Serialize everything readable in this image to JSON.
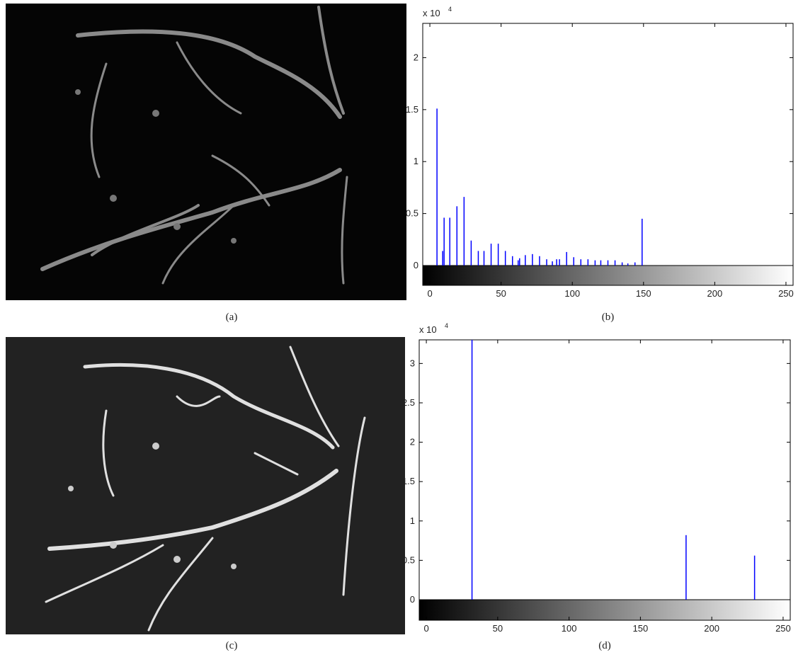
{
  "images": [
    {
      "caption": "(a)"
    },
    {
      "caption": "(c)"
    }
  ],
  "chart_data": [
    {
      "type": "bar",
      "caption": "(b)",
      "scale_label": {
        "base": "x 10",
        "exponent": "4"
      },
      "x": [
        5,
        9,
        10,
        14,
        19,
        24,
        29,
        34,
        38,
        43,
        48,
        53,
        58,
        62,
        63,
        67,
        72,
        77,
        82,
        86,
        89,
        91,
        96,
        101,
        106,
        111,
        116,
        120,
        125,
        130,
        135,
        139,
        144,
        149
      ],
      "values": [
        1.51,
        0.14,
        0.46,
        0.46,
        0.57,
        0.66,
        0.24,
        0.14,
        0.14,
        0.21,
        0.21,
        0.14,
        0.09,
        0.05,
        0.07,
        0.1,
        0.11,
        0.09,
        0.06,
        0.04,
        0.06,
        0.06,
        0.13,
        0.08,
        0.06,
        0.06,
        0.05,
        0.05,
        0.05,
        0.05,
        0.03,
        0.02,
        0.03,
        0.45
      ],
      "color": "#0000ff",
      "xlim": [
        -5,
        255
      ],
      "ylim": [
        0,
        2.33
      ],
      "xticks": [
        0,
        50,
        100,
        150,
        200,
        250
      ],
      "yticks": [
        0,
        0.5,
        1,
        1.5,
        2
      ]
    },
    {
      "type": "bar",
      "caption": "(d)",
      "scale_label": {
        "base": "x 10",
        "exponent": "4"
      },
      "x": [
        32,
        182,
        230
      ],
      "values": [
        3.3,
        0.82,
        0.56
      ],
      "color": "#0000ff",
      "xlim": [
        -5,
        255
      ],
      "ylim": [
        0,
        3.3
      ],
      "xticks": [
        0,
        50,
        100,
        150,
        200,
        250
      ],
      "yticks": [
        0,
        0.5,
        1,
        1.5,
        2,
        2.5,
        3
      ]
    }
  ]
}
